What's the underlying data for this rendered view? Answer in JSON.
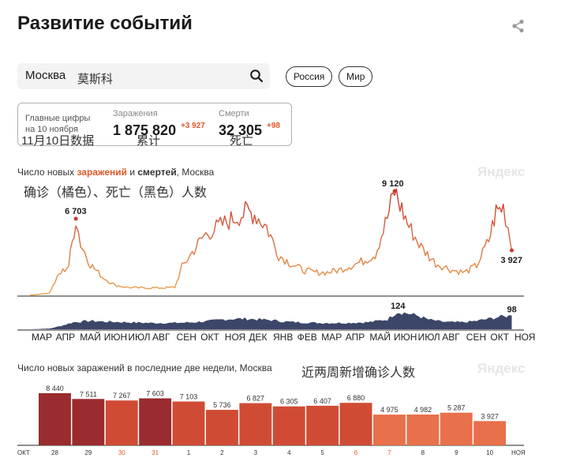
{
  "header": {
    "title": "Развитие событий",
    "share_icon": "share-icon"
  },
  "search": {
    "city": "Москва",
    "hint": "莫斯科"
  },
  "filters": [
    "Россия",
    "Мир"
  ],
  "stats": {
    "label_line1": "Главные цифры",
    "label_line2": "на 10 ноября",
    "date_note": "11月10日数据",
    "infections": {
      "caption": "Заражения",
      "value": "1 875 820",
      "delta": "+3 927",
      "note": "累计"
    },
    "deaths": {
      "caption": "Смерти",
      "value": "32 305",
      "delta": "+98",
      "note": "死亡"
    }
  },
  "chart1": {
    "title_pre": "Число новых ",
    "title_inf": "заражений",
    "title_mid": " и ",
    "title_deaths": "смертей",
    "title_post": ", Москва",
    "annotation": "确诊（橘色）、死亡（黑色）人数",
    "watermark": "Яндекс"
  },
  "chart2": {
    "title": "Число новых заражений в последние две недели, Москва",
    "annotation": "近两周新增确诊人数",
    "watermark": "Яндекс"
  },
  "colors": {
    "infections_line": "#e8a64e",
    "infections_peak": "#c8382e",
    "deaths_area": "#3c4668",
    "bar_dark": "#9a2b2e",
    "bar_mid": "#d04b34",
    "bar_light": "#e8704a",
    "accent": "#e0582a"
  },
  "chart_data": [
    {
      "type": "line",
      "title": "Число новых заражений и смертей, Москва",
      "months": [
        "МАР",
        "АПР",
        "МАЙ",
        "ИЮН",
        "ИЮЛ",
        "АВГ",
        "СЕН",
        "ОКТ",
        "НОЯ",
        "ДЕК",
        "ЯНВ",
        "ФЕВ",
        "МАР",
        "АПР",
        "МАЙ",
        "ИЮН",
        "ИЮЛ",
        "АВГ",
        "СЕН",
        "ОКТ",
        "НОЯ"
      ],
      "series": [
        {
          "name": "Заражения",
          "color": "orange",
          "x_month": [
            0,
            0.8,
            1.2,
            1.6,
            1.9,
            2.1,
            2.5,
            3,
            3.5,
            4,
            4.5,
            5,
            5.5,
            6,
            6.3,
            6.8,
            7.2,
            7.8,
            8.5,
            9,
            9.3,
            9.8,
            10.3,
            10.8,
            11.3,
            11.8,
            12.3,
            12.8,
            13.3,
            13.8,
            14.3,
            14.8,
            15.1,
            15.4,
            15.7,
            16.2,
            16.8,
            17.5,
            18,
            18.5,
            19,
            19.3,
            19.6,
            19.8,
            19.95
          ],
          "values": [
            0,
            200,
            1800,
            2600,
            6703,
            4500,
            2700,
            1600,
            900,
            700,
            650,
            650,
            650,
            700,
            2500,
            4000,
            5200,
            6000,
            6800,
            7300,
            7100,
            6000,
            3500,
            2800,
            2200,
            2000,
            2000,
            2200,
            2600,
            3000,
            3600,
            6800,
            9120,
            7500,
            6000,
            4200,
            2800,
            2200,
            2000,
            2600,
            4800,
            7300,
            7700,
            6000,
            3927
          ],
          "labels": [
            {
              "text": "6 703",
              "value": 6703
            },
            {
              "text": "9 120",
              "value": 9120
            },
            {
              "text": "3 927",
              "value": 3927
            }
          ]
        },
        {
          "name": "Смерти",
          "color": "dark",
          "x_month": [
            0,
            0.8,
            1.2,
            1.8,
            2.5,
            3,
            4,
            5,
            6,
            6.8,
            7.5,
            8,
            8.5,
            9,
            9.5,
            10,
            10.5,
            11,
            12,
            13,
            14,
            14.8,
            15.2,
            15.6,
            16,
            16.5,
            17,
            17.5,
            18,
            18.5,
            19,
            19.5,
            19.95
          ],
          "values": [
            0,
            5,
            20,
            50,
            60,
            55,
            50,
            45,
            45,
            50,
            60,
            70,
            75,
            75,
            70,
            65,
            55,
            50,
            45,
            45,
            50,
            70,
            124,
            115,
            100,
            70,
            55,
            50,
            50,
            60,
            75,
            90,
            98
          ],
          "labels": [
            {
              "text": "124",
              "value": 124
            },
            {
              "text": "98",
              "value": 98
            }
          ]
        }
      ]
    },
    {
      "type": "bar",
      "title": "Число новых заражений в последние две недели, Москва",
      "categories": [
        "28",
        "29",
        "30",
        "31",
        "1",
        "2",
        "3",
        "4",
        "5",
        "6",
        "7",
        "8",
        "9",
        "10"
      ],
      "month_start": "ОКТ",
      "month_end": "НОЯ",
      "values": [
        8440,
        7511,
        7267,
        7603,
        7103,
        5736,
        6827,
        6305,
        6407,
        6880,
        4975,
        4982,
        5287,
        3927
      ],
      "value_labels": [
        "8 440",
        "7 511",
        "7 267",
        "7 603",
        "7 103",
        "5 736",
        "6 827",
        "6 305",
        "6 407",
        "6 880",
        "4 975",
        "4 982",
        "5 287",
        "3 927"
      ],
      "weekend": [
        false,
        false,
        true,
        true,
        false,
        false,
        false,
        false,
        false,
        true,
        true,
        false,
        false,
        false
      ],
      "shade": [
        "dark",
        "dark",
        "mid",
        "dark",
        "mid",
        "mid",
        "mid",
        "mid",
        "mid",
        "mid",
        "light",
        "light",
        "light",
        "light"
      ]
    }
  ]
}
